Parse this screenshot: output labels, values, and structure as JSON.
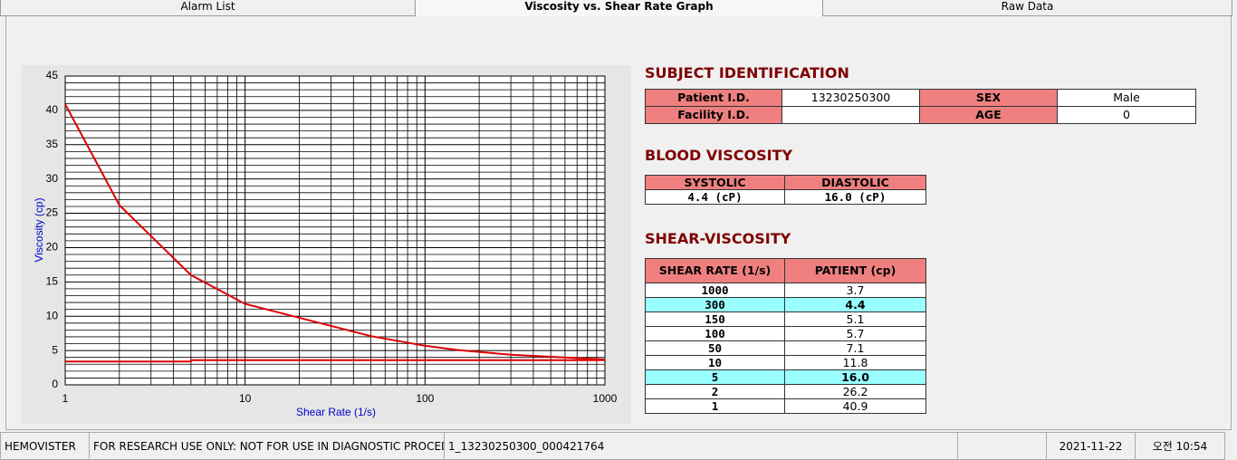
{
  "tabs": [
    "Alarm List",
    "Viscosity vs. Shear Rate Graph",
    "Raw Data"
  ],
  "active_tab": 1,
  "chart_data": {
    "type": "line",
    "xlabel": "Shear Rate (1/s)",
    "ylabel": "Viscosity (cp)",
    "xscale": "log",
    "xlim": [
      1,
      1000
    ],
    "xticks": [
      1,
      10,
      100,
      1000
    ],
    "xminor": [
      2,
      3,
      4,
      5,
      6,
      7,
      8,
      9,
      20,
      30,
      40,
      50,
      60,
      70,
      80,
      90,
      200,
      300,
      400,
      500,
      600,
      700,
      800,
      900
    ],
    "ylim": [
      0,
      45
    ],
    "yticks": [
      0,
      5,
      10,
      15,
      20,
      25,
      30,
      35,
      40,
      45
    ],
    "yminor": [
      1,
      2,
      3,
      4,
      6,
      7,
      8,
      9,
      11,
      12,
      13,
      14,
      16,
      17,
      18,
      19,
      21,
      22,
      23,
      24,
      26,
      27,
      28,
      29,
      31,
      32,
      33,
      34,
      36,
      37,
      38,
      39,
      41,
      42,
      43,
      44
    ],
    "grid": true,
    "series": [
      {
        "color": "#dd0000",
        "x": [
          1,
          2,
          5,
          10,
          50,
          100,
          150,
          300,
          1000
        ],
        "values": [
          40.9,
          26.2,
          16.0,
          11.8,
          7.1,
          5.7,
          5.1,
          4.4,
          3.7
        ]
      },
      {
        "color": "#dd0000",
        "x": [
          1,
          5,
          5,
          1000
        ],
        "values": [
          3.4,
          3.4,
          3.6,
          3.6
        ]
      }
    ]
  },
  "subject": {
    "title": "SUBJECT IDENTIFICATION",
    "fields": [
      {
        "label": "Patient I.D.",
        "value": "13230250300"
      },
      {
        "label": "SEX",
        "value": "Male"
      },
      {
        "label": "Facility I.D."
      },
      {
        "label": "AGE",
        "value": "0"
      }
    ]
  },
  "blood": {
    "title": "BLOOD VISCOSITY",
    "headers": [
      "SYSTOLIC",
      "DIASTOLIC"
    ],
    "values": [
      "4.4 (cP)",
      "16.0 (cP)"
    ]
  },
  "shear": {
    "title": "SHEAR-VISCOSITY",
    "headers": [
      "SHEAR RATE (1/s)",
      "PATIENT (cp)"
    ],
    "rows": [
      [
        "1000",
        "3.7"
      ],
      [
        "300",
        "4.4"
      ],
      [
        "150",
        "5.1"
      ],
      [
        "100",
        "5.7"
      ],
      [
        "50",
        "7.1"
      ],
      [
        "10",
        "11.8"
      ],
      [
        "5",
        "16.0"
      ],
      [
        "2",
        "26.2"
      ],
      [
        "1",
        "40.9"
      ]
    ],
    "highlight": [
      1,
      6
    ]
  },
  "status": [
    "HEMOVISTER",
    "FOR RESEARCH USE ONLY: NOT FOR USE IN DIAGNOSTIC PROCEDURES",
    "1_13230250300_000421764",
    "2021-11-22",
    "오전 10:54"
  ]
}
